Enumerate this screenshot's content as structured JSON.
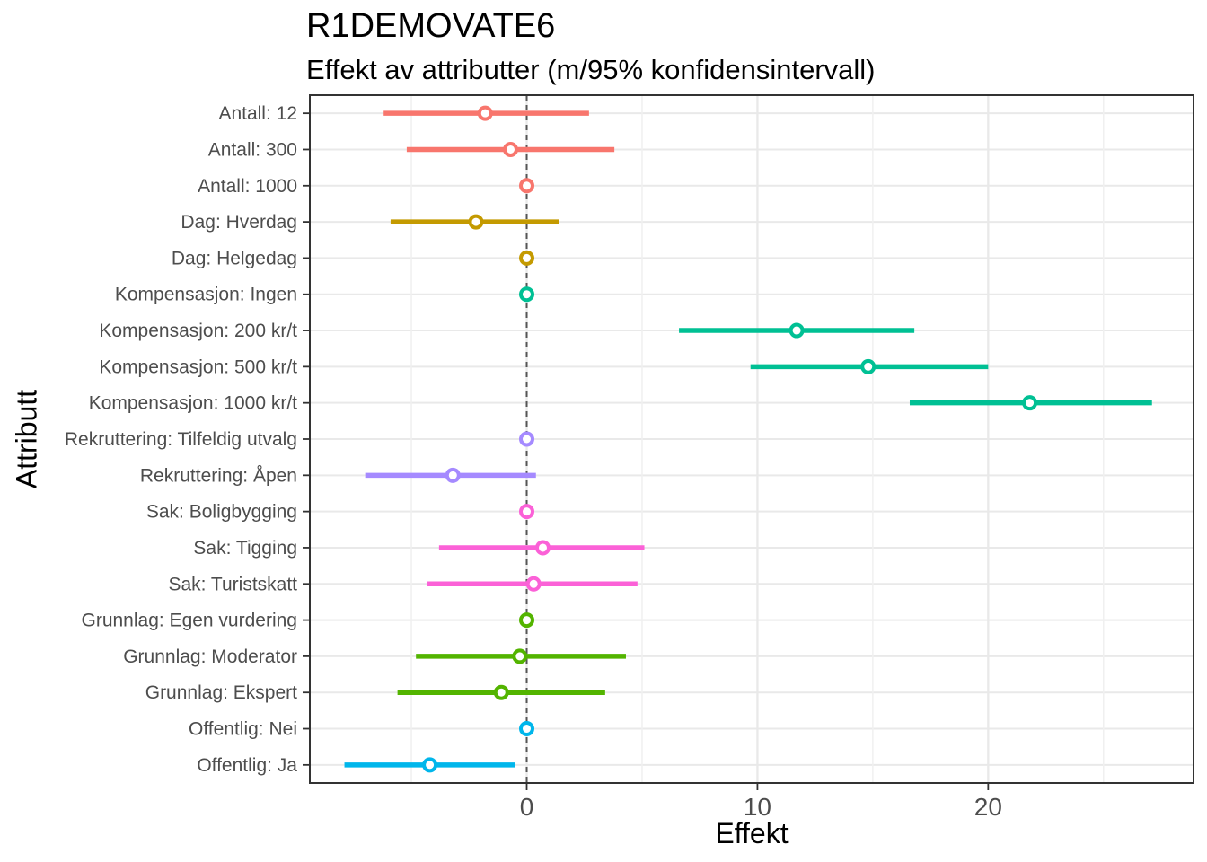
{
  "chart_data": {
    "type": "scatter",
    "subtype": "pointrange-forest-plot",
    "title": "R1DEMOVATE6",
    "subtitle": "Effekt av attributter (m/95% konfidensintervall)",
    "xlabel": "Effekt",
    "ylabel": "Attributt",
    "xlim": [
      -9.4,
      28.9
    ],
    "x_major_ticks": [
      0,
      10,
      20
    ],
    "x_tick_labels": [
      "0",
      "10",
      "20"
    ],
    "x_minor_gridlines": [
      -5,
      5,
      15,
      25
    ],
    "zero_reference_line": 0,
    "grid": true,
    "legend": "none",
    "group_colors": {
      "Antall": "#F8766D",
      "Dag": "#C49A00",
      "Kompensasjon": "#00C094",
      "Rekruttering": "#A58AFF",
      "Sak": "#FB61D7",
      "Grunnlag": "#53B400",
      "Offentlig": "#00B6EB"
    },
    "rows": [
      {
        "label": "Antall: 12",
        "group": "Antall",
        "estimate": -1.8,
        "ci_low": -6.2,
        "ci_high": 2.7
      },
      {
        "label": "Antall: 300",
        "group": "Antall",
        "estimate": -0.7,
        "ci_low": -5.2,
        "ci_high": 3.8
      },
      {
        "label": "Antall: 1000",
        "group": "Antall",
        "estimate": 0,
        "ci_low": 0,
        "ci_high": 0
      },
      {
        "label": "Dag: Hverdag",
        "group": "Dag",
        "estimate": -2.2,
        "ci_low": -5.9,
        "ci_high": 1.4
      },
      {
        "label": "Dag: Helgedag",
        "group": "Dag",
        "estimate": 0,
        "ci_low": 0,
        "ci_high": 0
      },
      {
        "label": "Kompensasjon: Ingen",
        "group": "Kompensasjon",
        "estimate": 0,
        "ci_low": 0,
        "ci_high": 0
      },
      {
        "label": "Kompensasjon: 200 kr/t",
        "group": "Kompensasjon",
        "estimate": 11.7,
        "ci_low": 6.6,
        "ci_high": 16.8
      },
      {
        "label": "Kompensasjon: 500 kr/t",
        "group": "Kompensasjon",
        "estimate": 14.8,
        "ci_low": 9.7,
        "ci_high": 20.0
      },
      {
        "label": "Kompensasjon: 1000 kr/t",
        "group": "Kompensasjon",
        "estimate": 21.8,
        "ci_low": 16.6,
        "ci_high": 27.1
      },
      {
        "label": "Rekruttering: Tilfeldig utvalg",
        "group": "Rekruttering",
        "estimate": 0,
        "ci_low": 0,
        "ci_high": 0
      },
      {
        "label": "Rekruttering: Åpen",
        "group": "Rekruttering",
        "estimate": -3.2,
        "ci_low": -7.0,
        "ci_high": 0.4
      },
      {
        "label": "Sak: Boligbygging",
        "group": "Sak",
        "estimate": 0,
        "ci_low": 0,
        "ci_high": 0
      },
      {
        "label": "Sak: Tigging",
        "group": "Sak",
        "estimate": 0.7,
        "ci_low": -3.8,
        "ci_high": 5.1
      },
      {
        "label": "Sak: Turistskatt",
        "group": "Sak",
        "estimate": 0.3,
        "ci_low": -4.3,
        "ci_high": 4.8
      },
      {
        "label": "Grunnlag: Egen vurdering",
        "group": "Grunnlag",
        "estimate": 0,
        "ci_low": 0,
        "ci_high": 0
      },
      {
        "label": "Grunnlag: Moderator",
        "group": "Grunnlag",
        "estimate": -0.3,
        "ci_low": -4.8,
        "ci_high": 4.3
      },
      {
        "label": "Grunnlag: Ekspert",
        "group": "Grunnlag",
        "estimate": -1.1,
        "ci_low": -5.6,
        "ci_high": 3.4
      },
      {
        "label": "Offentlig: Nei",
        "group": "Offentlig",
        "estimate": 0,
        "ci_low": 0,
        "ci_high": 0
      },
      {
        "label": "Offentlig: Ja",
        "group": "Offentlig",
        "estimate": -4.2,
        "ci_low": -7.9,
        "ci_high": -0.5
      }
    ]
  },
  "styles": {
    "background": "#FFFFFF",
    "axis_text_color": "#4D4D4D",
    "axis_title_color": "#000000",
    "panel_border_color": "#333333",
    "tick_mark_color": "#333333",
    "grid_major_color": "#E9E9E9",
    "grid_minor_color": "#F0F0F0",
    "zero_line_color": "#555555",
    "point_fill": "#FFFFFF"
  }
}
